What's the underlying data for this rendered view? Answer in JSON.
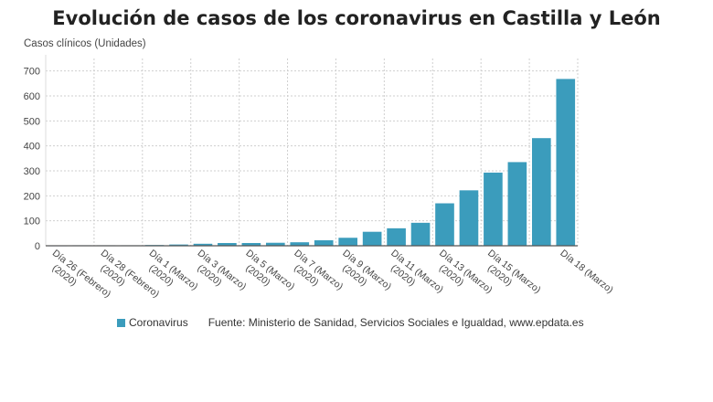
{
  "title": "Evolución de casos de los coronavirus en Castilla y León",
  "legend": {
    "series_name": "Coronavirus",
    "source": "Fuente: Ministerio de Sanidad, Servicios Sociales e Igualdad, www.epdata.es"
  },
  "colors": {
    "bar": "#3b9cbc",
    "grid": "#cfcfcf",
    "axis": "#555555"
  },
  "chart_data": {
    "type": "bar",
    "ylabel": "Casos clínicos (Unidades)",
    "ylim": [
      0,
      750
    ],
    "yticks": [
      0,
      100,
      200,
      300,
      400,
      500,
      600,
      700
    ],
    "grid": true,
    "legend_position": "bottom",
    "categories": [
      "26 Feb",
      "27 Feb",
      "28 Feb",
      "29 Feb",
      "1 Mar",
      "2 Mar",
      "3 Mar",
      "4 Mar",
      "5 Mar",
      "6 Mar",
      "7 Mar",
      "8 Mar",
      "9 Mar",
      "10 Mar",
      "11 Mar",
      "12 Mar",
      "13 Mar",
      "14 Mar",
      "15 Mar",
      "16 Mar",
      "17 Mar",
      "18 Mar"
    ],
    "xtick_labels": [
      {
        "index": 0,
        "lines": [
          "Día 26 (Febrero)",
          "(2020)"
        ]
      },
      {
        "index": 2,
        "lines": [
          "Día 28 (Febrero)",
          "(2020)"
        ]
      },
      {
        "index": 4,
        "lines": [
          "Día 1 (Marzo)",
          "(2020)"
        ]
      },
      {
        "index": 6,
        "lines": [
          "Día 3 (Marzo)",
          "(2020)"
        ]
      },
      {
        "index": 8,
        "lines": [
          "Día 5 (Marzo)",
          "(2020)"
        ]
      },
      {
        "index": 10,
        "lines": [
          "Día 7 (Marzo)",
          "(2020)"
        ]
      },
      {
        "index": 12,
        "lines": [
          "Día 9 (Marzo)",
          "(2020)"
        ]
      },
      {
        "index": 14,
        "lines": [
          "Día 11 (Marzo)",
          "(2020)"
        ]
      },
      {
        "index": 16,
        "lines": [
          "Día 13 (Marzo)",
          "(2020)"
        ]
      },
      {
        "index": 18,
        "lines": [
          "Día 15 (Marzo)",
          "(2020)"
        ]
      },
      {
        "index": 21,
        "lines": [
          "Día 18 (Marzo)"
        ]
      }
    ],
    "series": [
      {
        "name": "Coronavirus",
        "values": [
          1,
          2,
          2,
          2,
          3,
          5,
          8,
          11,
          11,
          12,
          14,
          22,
          32,
          56,
          70,
          92,
          170,
          222,
          293,
          335,
          431,
          668
        ]
      }
    ]
  }
}
